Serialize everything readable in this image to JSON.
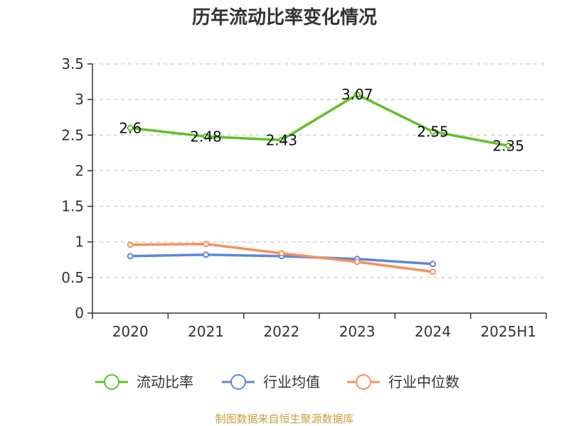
{
  "chart_data": {
    "type": "line",
    "title": "历年流动比率变化情况",
    "categories": [
      "2020",
      "2021",
      "2022",
      "2023",
      "2024",
      "2025H1"
    ],
    "ylim": [
      0,
      3.5
    ],
    "yticks": [
      "0",
      "0.5",
      "1",
      "1.5",
      "2",
      "2.5",
      "3",
      "3.5"
    ],
    "grid": true,
    "legend_position": "bottom",
    "series": [
      {
        "name": "流动比率",
        "color": "#5ec025",
        "values": [
          2.6,
          2.48,
          2.43,
          3.07,
          2.55,
          2.35
        ],
        "labels": [
          "2.6",
          "2.48",
          "2.43",
          "3.07",
          "2.55",
          "2.35"
        ]
      },
      {
        "name": "行业均值",
        "color": "#5b87d9",
        "values": [
          0.8,
          0.82,
          0.8,
          0.76,
          0.69,
          null
        ]
      },
      {
        "name": "行业中位数",
        "color": "#f4925e",
        "values": [
          0.96,
          0.97,
          0.84,
          0.72,
          0.58,
          null
        ]
      }
    ]
  },
  "source_note": "制图数据来自恒生聚源数据库"
}
